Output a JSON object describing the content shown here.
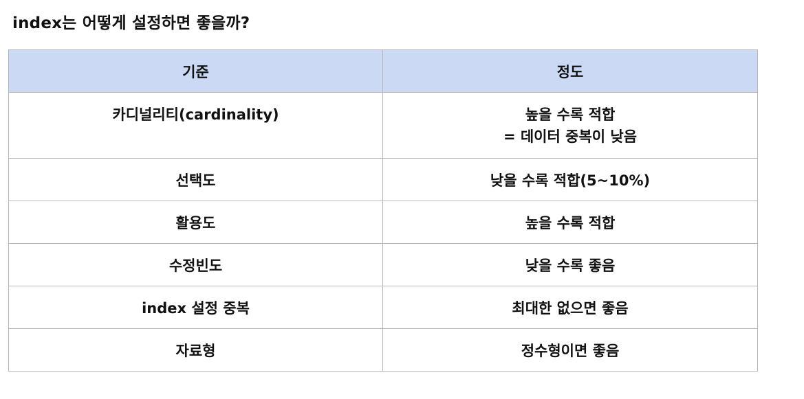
{
  "title": "index는 어떻게 설정하면 좋을까?",
  "table": {
    "headers": [
      "기준",
      "정도"
    ],
    "rows": [
      {
        "criterion": "카디널리티(cardinality)",
        "degree": [
          "높을 수록 적합",
          "= 데이터 중복이 낮음"
        ]
      },
      {
        "criterion": "선택도",
        "degree": [
          "낮을 수록 적합(5~10%)"
        ]
      },
      {
        "criterion": "활용도",
        "degree": [
          "높을 수록 적합"
        ]
      },
      {
        "criterion": "수정빈도",
        "degree": [
          "낮을 수록 좋음"
        ]
      },
      {
        "criterion": "index 설정 중복",
        "degree": [
          "최대한 없으면 좋음"
        ]
      },
      {
        "criterion": "자료형",
        "degree": [
          "정수형이면 좋음"
        ]
      }
    ]
  }
}
